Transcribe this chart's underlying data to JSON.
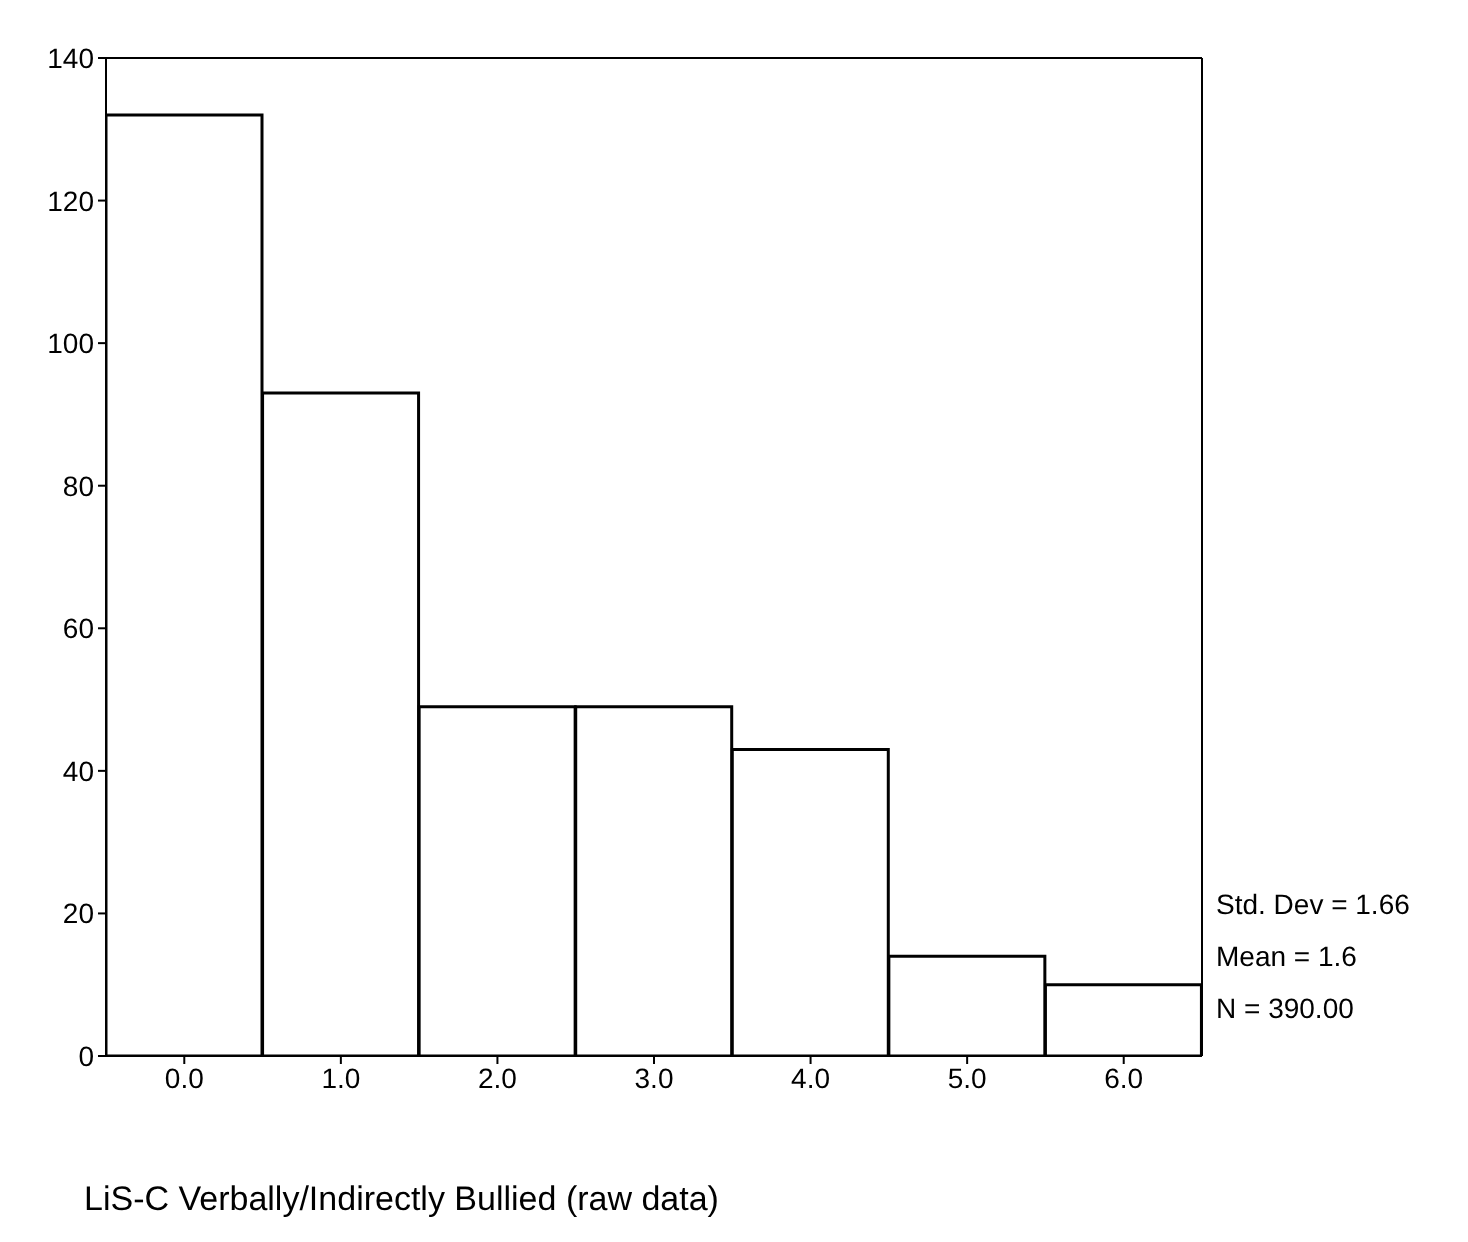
{
  "chart_data": {
    "type": "histogram",
    "xlabel": "LiS-C Verbally/Indirectly Bullied (raw data)",
    "bins": [
      -0.5,
      0.5,
      1.5,
      2.5,
      3.5,
      4.5,
      5.5,
      6.5
    ],
    "values": [
      132,
      93,
      49,
      49,
      43,
      14,
      10
    ],
    "color": "#ffffff",
    "xlim": [
      -0.5,
      6.5
    ],
    "xticks": [
      {
        "value": 0,
        "label": "0.0"
      },
      {
        "value": 1,
        "label": "1.0"
      },
      {
        "value": 2,
        "label": "2.0"
      },
      {
        "value": 3,
        "label": "3.0"
      },
      {
        "value": 4,
        "label": "4.0"
      },
      {
        "value": 5,
        "label": "5.0"
      },
      {
        "value": 6,
        "label": "6.0"
      }
    ],
    "ylim": [
      0,
      140
    ],
    "yticks": [
      0,
      20,
      40,
      60,
      80,
      100,
      120,
      140
    ],
    "annotations": [
      "Std. Dev = 1.66",
      "Mean = 1.6",
      "N = 390.00"
    ]
  }
}
